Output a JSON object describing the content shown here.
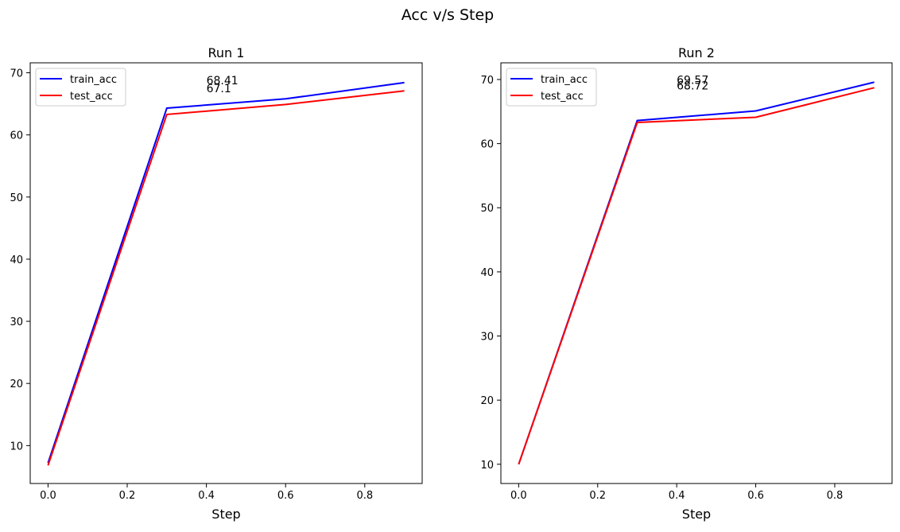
{
  "figure": {
    "suptitle": "Acc v/s Step"
  },
  "chart_data": [
    {
      "type": "line",
      "title": "Run 1",
      "xlabel": "Step",
      "ylabel": "",
      "xlim": [
        -0.045,
        0.945
      ],
      "ylim": [
        3.9,
        71.6
      ],
      "xticks": [
        0.0,
        0.2,
        0.4,
        0.6,
        0.8
      ],
      "xtick_labels": [
        "0.0",
        "0.2",
        "0.4",
        "0.6",
        "0.8"
      ],
      "yticks": [
        10,
        20,
        30,
        40,
        50,
        60,
        70
      ],
      "ytick_labels": [
        "10",
        "20",
        "30",
        "40",
        "50",
        "60",
        "70"
      ],
      "x": [
        0.0,
        0.3,
        0.6,
        0.9
      ],
      "series": [
        {
          "name": "train_acc",
          "color": "#0000ff",
          "values": [
            7.2,
            64.3,
            65.8,
            68.41
          ]
        },
        {
          "name": "test_acc",
          "color": "#ff0000",
          "values": [
            6.8,
            63.3,
            64.9,
            67.1
          ]
        }
      ],
      "annotations": [
        {
          "text": "68.41",
          "x": 0.4,
          "y": 68.41
        },
        {
          "text": "67.1",
          "x": 0.4,
          "y": 67.1
        }
      ],
      "legend": "upper left",
      "grid": false
    },
    {
      "type": "line",
      "title": "Run 2",
      "xlabel": "Step",
      "ylabel": "",
      "xlim": [
        -0.045,
        0.945
      ],
      "ylim": [
        7.0,
        72.6
      ],
      "xticks": [
        0.0,
        0.2,
        0.4,
        0.6,
        0.8
      ],
      "xtick_labels": [
        "0.0",
        "0.2",
        "0.4",
        "0.6",
        "0.8"
      ],
      "yticks": [
        10,
        20,
        30,
        40,
        50,
        60,
        70
      ],
      "ytick_labels": [
        "10",
        "20",
        "30",
        "40",
        "50",
        "60",
        "70"
      ],
      "x": [
        0.0,
        0.3,
        0.6,
        0.9
      ],
      "series": [
        {
          "name": "train_acc",
          "color": "#0000ff",
          "values": [
            10.0,
            63.6,
            65.1,
            69.57
          ]
        },
        {
          "name": "test_acc",
          "color": "#ff0000",
          "values": [
            10.0,
            63.3,
            64.1,
            68.72
          ]
        }
      ],
      "annotations": [
        {
          "text": "69.57",
          "x": 0.4,
          "y": 69.57
        },
        {
          "text": "68.72",
          "x": 0.4,
          "y": 68.72
        }
      ],
      "legend": "upper left",
      "grid": false
    }
  ]
}
